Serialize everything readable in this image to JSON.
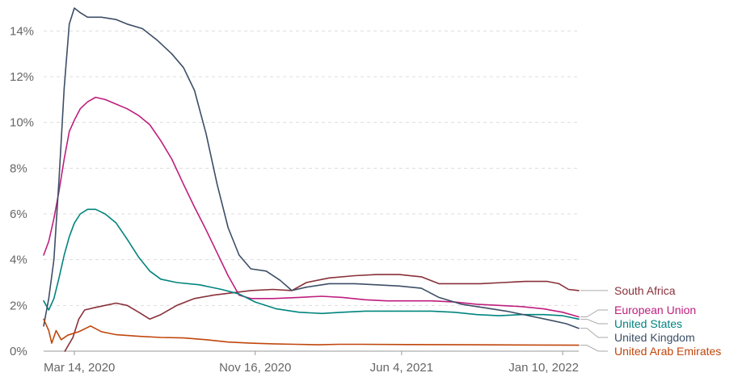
{
  "chart_data": {
    "type": "line",
    "x_axis": {
      "start": "2020-02-01",
      "end": "2022-02-01",
      "ticks": [
        {
          "date": "2020-03-14",
          "label": "Mar 14, 2020"
        },
        {
          "date": "2020-11-16",
          "label": "Nov 16, 2020"
        },
        {
          "date": "2021-06-04",
          "label": "Jun 4, 2021"
        },
        {
          "date": "2022-01-10",
          "label": "Jan 10, 2022"
        }
      ]
    },
    "y_axis": {
      "ylim": [
        0,
        15
      ],
      "ticks": [
        {
          "value": 0,
          "label": "0%"
        },
        {
          "value": 2,
          "label": "2%"
        },
        {
          "value": 4,
          "label": "4%"
        },
        {
          "value": 6,
          "label": "6%"
        },
        {
          "value": 8,
          "label": "8%"
        },
        {
          "value": 10,
          "label": "10%"
        },
        {
          "value": 12,
          "label": "12%"
        },
        {
          "value": 14,
          "label": "14%"
        }
      ]
    },
    "grid": "horizontal",
    "legend": "right-labels",
    "series": [
      {
        "name": "South Africa",
        "color": "#883039",
        "points": [
          [
            "2020-03-01",
            0.0
          ],
          [
            "2020-03-12",
            0.6
          ],
          [
            "2020-03-20",
            1.4
          ],
          [
            "2020-03-28",
            1.8
          ],
          [
            "2020-04-10",
            1.9
          ],
          [
            "2020-04-25",
            2.0
          ],
          [
            "2020-05-10",
            2.1
          ],
          [
            "2020-05-25",
            2.0
          ],
          [
            "2020-06-10",
            1.7
          ],
          [
            "2020-06-25",
            1.4
          ],
          [
            "2020-07-10",
            1.6
          ],
          [
            "2020-08-01",
            2.0
          ],
          [
            "2020-08-25",
            2.3
          ],
          [
            "2020-09-20",
            2.45
          ],
          [
            "2020-10-15",
            2.55
          ],
          [
            "2020-11-10",
            2.65
          ],
          [
            "2020-12-10",
            2.7
          ],
          [
            "2021-01-05",
            2.65
          ],
          [
            "2021-01-25",
            3.0
          ],
          [
            "2021-02-25",
            3.2
          ],
          [
            "2021-04-01",
            3.3
          ],
          [
            "2021-05-01",
            3.35
          ],
          [
            "2021-06-01",
            3.35
          ],
          [
            "2021-07-01",
            3.25
          ],
          [
            "2021-07-25",
            2.95
          ],
          [
            "2021-08-20",
            2.95
          ],
          [
            "2021-09-20",
            2.95
          ],
          [
            "2021-10-20",
            3.0
          ],
          [
            "2021-11-20",
            3.05
          ],
          [
            "2021-12-20",
            3.05
          ],
          [
            "2022-01-05",
            2.95
          ],
          [
            "2022-01-18",
            2.7
          ],
          [
            "2022-02-01",
            2.65
          ]
        ]
      },
      {
        "name": "European Union",
        "color": "#BE1E7D",
        "points": [
          [
            "2020-02-01",
            4.2
          ],
          [
            "2020-02-08",
            4.8
          ],
          [
            "2020-02-15",
            5.8
          ],
          [
            "2020-02-22",
            7.0
          ],
          [
            "2020-02-29",
            8.4
          ],
          [
            "2020-03-07",
            9.6
          ],
          [
            "2020-03-14",
            10.1
          ],
          [
            "2020-03-22",
            10.6
          ],
          [
            "2020-04-01",
            10.9
          ],
          [
            "2020-04-12",
            11.1
          ],
          [
            "2020-04-25",
            11.0
          ],
          [
            "2020-05-10",
            10.8
          ],
          [
            "2020-05-25",
            10.6
          ],
          [
            "2020-06-10",
            10.3
          ],
          [
            "2020-06-25",
            9.9
          ],
          [
            "2020-07-10",
            9.2
          ],
          [
            "2020-07-25",
            8.4
          ],
          [
            "2020-08-10",
            7.3
          ],
          [
            "2020-08-25",
            6.3
          ],
          [
            "2020-09-10",
            5.3
          ],
          [
            "2020-09-25",
            4.3
          ],
          [
            "2020-10-10",
            3.3
          ],
          [
            "2020-10-25",
            2.45
          ],
          [
            "2020-11-10",
            2.3
          ],
          [
            "2020-12-10",
            2.3
          ],
          [
            "2021-01-15",
            2.35
          ],
          [
            "2021-02-15",
            2.4
          ],
          [
            "2021-03-15",
            2.35
          ],
          [
            "2021-04-15",
            2.25
          ],
          [
            "2021-05-15",
            2.2
          ],
          [
            "2021-06-15",
            2.2
          ],
          [
            "2021-07-15",
            2.2
          ],
          [
            "2021-08-15",
            2.15
          ],
          [
            "2021-09-15",
            2.05
          ],
          [
            "2021-10-15",
            2.0
          ],
          [
            "2021-11-15",
            1.95
          ],
          [
            "2021-12-15",
            1.85
          ],
          [
            "2022-01-10",
            1.7
          ],
          [
            "2022-02-01",
            1.5
          ]
        ]
      },
      {
        "name": "United States",
        "color": "#00847E",
        "points": [
          [
            "2020-02-01",
            2.2
          ],
          [
            "2020-02-08",
            1.8
          ],
          [
            "2020-02-15",
            2.3
          ],
          [
            "2020-02-22",
            3.2
          ],
          [
            "2020-02-29",
            4.2
          ],
          [
            "2020-03-07",
            5.0
          ],
          [
            "2020-03-14",
            5.6
          ],
          [
            "2020-03-22",
            6.0
          ],
          [
            "2020-04-01",
            6.2
          ],
          [
            "2020-04-12",
            6.2
          ],
          [
            "2020-04-25",
            6.0
          ],
          [
            "2020-05-10",
            5.6
          ],
          [
            "2020-05-25",
            4.9
          ],
          [
            "2020-06-10",
            4.1
          ],
          [
            "2020-06-25",
            3.5
          ],
          [
            "2020-07-10",
            3.15
          ],
          [
            "2020-08-01",
            3.0
          ],
          [
            "2020-09-01",
            2.9
          ],
          [
            "2020-10-01",
            2.7
          ],
          [
            "2020-10-25",
            2.5
          ],
          [
            "2020-11-16",
            2.15
          ],
          [
            "2020-12-15",
            1.85
          ],
          [
            "2021-01-15",
            1.7
          ],
          [
            "2021-02-15",
            1.65
          ],
          [
            "2021-03-15",
            1.7
          ],
          [
            "2021-04-15",
            1.75
          ],
          [
            "2021-05-15",
            1.75
          ],
          [
            "2021-06-15",
            1.75
          ],
          [
            "2021-07-15",
            1.75
          ],
          [
            "2021-08-15",
            1.7
          ],
          [
            "2021-09-15",
            1.6
          ],
          [
            "2021-10-15",
            1.55
          ],
          [
            "2021-11-15",
            1.6
          ],
          [
            "2021-12-15",
            1.6
          ],
          [
            "2022-01-10",
            1.55
          ],
          [
            "2022-02-01",
            1.4
          ]
        ]
      },
      {
        "name": "United Kingdom",
        "color": "#3C4E66",
        "points": [
          [
            "2020-02-01",
            1.1
          ],
          [
            "2020-02-08",
            2.3
          ],
          [
            "2020-02-15",
            4.0
          ],
          [
            "2020-02-22",
            7.5
          ],
          [
            "2020-02-29",
            11.5
          ],
          [
            "2020-03-07",
            14.3
          ],
          [
            "2020-03-14",
            15.0
          ],
          [
            "2020-03-22",
            14.8
          ],
          [
            "2020-04-01",
            14.6
          ],
          [
            "2020-04-20",
            14.6
          ],
          [
            "2020-05-10",
            14.5
          ],
          [
            "2020-05-25",
            14.3
          ],
          [
            "2020-06-15",
            14.1
          ],
          [
            "2020-07-05",
            13.6
          ],
          [
            "2020-07-25",
            13.0
          ],
          [
            "2020-08-10",
            12.4
          ],
          [
            "2020-08-25",
            11.4
          ],
          [
            "2020-09-10",
            9.5
          ],
          [
            "2020-09-25",
            7.3
          ],
          [
            "2020-10-10",
            5.4
          ],
          [
            "2020-10-25",
            4.2
          ],
          [
            "2020-11-10",
            3.6
          ],
          [
            "2020-12-01",
            3.5
          ],
          [
            "2020-12-20",
            3.1
          ],
          [
            "2021-01-05",
            2.65
          ],
          [
            "2021-01-25",
            2.8
          ],
          [
            "2021-02-25",
            2.95
          ],
          [
            "2021-04-01",
            2.95
          ],
          [
            "2021-05-01",
            2.9
          ],
          [
            "2021-06-01",
            2.85
          ],
          [
            "2021-07-01",
            2.75
          ],
          [
            "2021-07-25",
            2.35
          ],
          [
            "2021-08-25",
            2.05
          ],
          [
            "2021-09-25",
            1.9
          ],
          [
            "2021-10-25",
            1.75
          ],
          [
            "2021-11-25",
            1.55
          ],
          [
            "2021-12-25",
            1.35
          ],
          [
            "2022-01-15",
            1.2
          ],
          [
            "2022-02-01",
            1.0
          ]
        ]
      },
      {
        "name": "United Arab Emirates",
        "color": "#C0460C",
        "points": [
          [
            "2020-02-01",
            1.4
          ],
          [
            "2020-02-08",
            0.9
          ],
          [
            "2020-02-12",
            0.35
          ],
          [
            "2020-02-18",
            0.9
          ],
          [
            "2020-02-25",
            0.5
          ],
          [
            "2020-03-05",
            0.7
          ],
          [
            "2020-03-20",
            0.85
          ],
          [
            "2020-04-05",
            1.1
          ],
          [
            "2020-04-20",
            0.85
          ],
          [
            "2020-05-10",
            0.72
          ],
          [
            "2020-06-10",
            0.65
          ],
          [
            "2020-07-10",
            0.6
          ],
          [
            "2020-08-10",
            0.58
          ],
          [
            "2020-09-10",
            0.5
          ],
          [
            "2020-10-10",
            0.4
          ],
          [
            "2020-11-10",
            0.35
          ],
          [
            "2020-12-10",
            0.32
          ],
          [
            "2021-01-10",
            0.3
          ],
          [
            "2021-02-10",
            0.28
          ],
          [
            "2021-03-10",
            0.3
          ],
          [
            "2021-04-10",
            0.3
          ],
          [
            "2021-06-10",
            0.29
          ],
          [
            "2021-09-10",
            0.28
          ],
          [
            "2021-12-10",
            0.27
          ],
          [
            "2022-02-01",
            0.26
          ]
        ]
      }
    ]
  }
}
